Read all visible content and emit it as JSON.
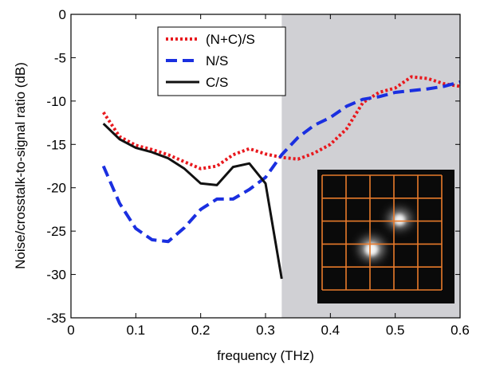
{
  "chart_data": {
    "type": "line",
    "xlabel": "frequency (THz)",
    "ylabel": "Noise/crosstalk-to-signal ratio (dB)",
    "xlim": [
      0,
      0.6
    ],
    "ylim": [
      -35,
      0
    ],
    "xticks": [
      0,
      0.1,
      0.2,
      0.3,
      0.4,
      0.5,
      0.6
    ],
    "xtick_labels": [
      "0",
      "0.1",
      "0.2",
      "0.3",
      "0.4",
      "0.5",
      "0.6"
    ],
    "yticks": [
      0,
      -5,
      -10,
      -15,
      -20,
      -25,
      -30,
      -35
    ],
    "ytick_labels": [
      "0",
      "-5",
      "-10",
      "-15",
      "-20",
      "-25",
      "-30",
      "-35"
    ],
    "shaded_region": {
      "x": [
        0.325,
        0.6
      ],
      "color": "#d0d0d4"
    },
    "legend_position": "top-center",
    "series": [
      {
        "name": "(N+C)/S",
        "style": "dotted",
        "color": "#e8191e",
        "x": [
          0.05,
          0.075,
          0.1,
          0.125,
          0.15,
          0.175,
          0.2,
          0.225,
          0.25,
          0.275,
          0.3,
          0.325,
          0.35,
          0.375,
          0.4,
          0.425,
          0.45,
          0.475,
          0.5,
          0.525,
          0.55,
          0.575,
          0.6
        ],
        "y": [
          -11.3,
          -14.1,
          -15.1,
          -15.6,
          -16.2,
          -17.0,
          -17.8,
          -17.5,
          -16.2,
          -15.5,
          -16.1,
          -16.5,
          -16.7,
          -16.0,
          -15.0,
          -13.2,
          -10.2,
          -9.0,
          -8.5,
          -7.2,
          -7.4,
          -8.0,
          -8.3
        ]
      },
      {
        "name": "N/S",
        "style": "dashed",
        "color": "#1a2fe0",
        "x": [
          0.05,
          0.075,
          0.1,
          0.125,
          0.15,
          0.175,
          0.2,
          0.225,
          0.25,
          0.275,
          0.3,
          0.325,
          0.35,
          0.375,
          0.4,
          0.425,
          0.45,
          0.475,
          0.5,
          0.525,
          0.55,
          0.575,
          0.6
        ],
        "y": [
          -17.5,
          -21.8,
          -24.7,
          -26.0,
          -26.2,
          -24.6,
          -22.5,
          -21.3,
          -21.3,
          -20.2,
          -18.8,
          -16.2,
          -14.2,
          -12.8,
          -11.9,
          -10.6,
          -9.8,
          -9.5,
          -9.0,
          -8.8,
          -8.6,
          -8.3,
          -7.8
        ]
      },
      {
        "name": "C/S",
        "style": "solid",
        "color": "#111111",
        "x": [
          0.05,
          0.075,
          0.1,
          0.125,
          0.15,
          0.175,
          0.2,
          0.225,
          0.25,
          0.275,
          0.3,
          0.325
        ],
        "y": [
          -12.6,
          -14.4,
          -15.4,
          -15.9,
          -16.6,
          -17.8,
          -19.5,
          -19.7,
          -17.6,
          -17.2,
          -19.5,
          -30.5
        ]
      }
    ],
    "inset": {
      "description": "grayscale image with orange grid",
      "grid_rows": 5,
      "grid_cols": 5,
      "grid_color": "#e87a2a"
    }
  }
}
